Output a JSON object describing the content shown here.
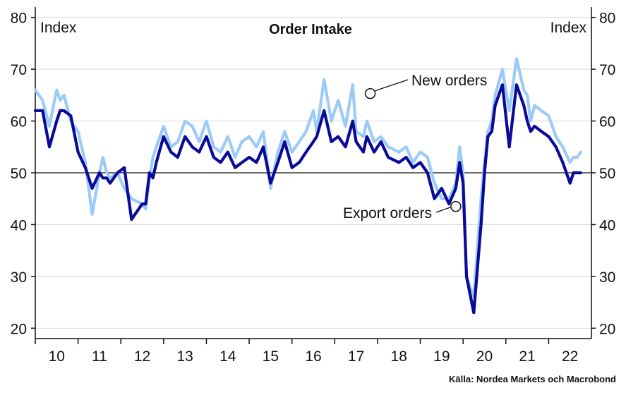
{
  "chart_data": {
    "type": "line",
    "title": "Order Intake",
    "y_unit_left": "Index",
    "y_unit_right": "Index",
    "ylim": [
      18,
      82
    ],
    "yticks": [
      20,
      30,
      40,
      50,
      60,
      70,
      80
    ],
    "xlim": [
      2009.5,
      2022.5
    ],
    "xtick_labels": [
      {
        "label": "10",
        "year": 2010
      },
      {
        "label": "11",
        "year": 2011
      },
      {
        "label": "12",
        "year": 2012
      },
      {
        "label": "13",
        "year": 2013
      },
      {
        "label": "14",
        "year": 2014
      },
      {
        "label": "15",
        "year": 2015
      },
      {
        "label": "16",
        "year": 2016
      },
      {
        "label": "17",
        "year": 2017
      },
      {
        "label": "18",
        "year": 2018
      },
      {
        "label": "19",
        "year": 2019
      },
      {
        "label": "20",
        "year": 2020
      },
      {
        "label": "21",
        "year": 2021
      },
      {
        "label": "22",
        "year": 2022
      }
    ],
    "reference_line": 50,
    "grid": true,
    "series": [
      {
        "name": "Export orders",
        "color": "#0a0a99",
        "x": [
          2009.5,
          2009.67,
          2009.83,
          2010.0,
          2010.08,
          2010.17,
          2010.33,
          2010.5,
          2010.67,
          2010.83,
          2011.0,
          2011.08,
          2011.17,
          2011.25,
          2011.42,
          2011.58,
          2011.75,
          2012.0,
          2012.08,
          2012.17,
          2012.25,
          2012.33,
          2012.5,
          2012.67,
          2012.83,
          2013.0,
          2013.17,
          2013.33,
          2013.5,
          2013.67,
          2013.83,
          2014.0,
          2014.17,
          2014.33,
          2014.5,
          2014.67,
          2014.83,
          2015.0,
          2015.17,
          2015.33,
          2015.5,
          2015.67,
          2015.83,
          2016.0,
          2016.08,
          2016.25,
          2016.42,
          2016.58,
          2016.75,
          2016.92,
          2017.0,
          2017.17,
          2017.25,
          2017.42,
          2017.58,
          2017.75,
          2018.0,
          2018.17,
          2018.33,
          2018.5,
          2018.67,
          2018.83,
          2019.0,
          2019.17,
          2019.33,
          2019.42,
          2019.5,
          2019.58,
          2019.75,
          2019.92,
          2020.0,
          2020.08,
          2020.17,
          2020.25,
          2020.42,
          2020.58,
          2020.75,
          2020.92,
          2021.0,
          2021.08,
          2021.17,
          2021.33,
          2021.5,
          2021.67,
          2021.83,
          2022.0,
          2022.08,
          2022.17,
          2022.25
        ],
        "y": [
          62,
          62,
          55,
          60,
          62,
          62,
          61,
          54,
          51,
          47,
          50,
          49,
          49,
          48,
          50,
          51,
          41,
          44,
          44,
          50,
          49,
          52,
          57,
          54,
          53,
          57,
          55,
          54,
          57,
          53,
          52,
          54,
          51,
          52,
          53,
          52,
          55,
          48,
          52,
          56,
          51,
          52,
          54,
          56,
          57,
          62,
          56,
          57,
          55,
          60,
          56,
          54,
          57,
          54,
          56,
          53,
          52,
          53,
          51,
          52,
          50,
          45,
          47,
          44,
          47,
          52,
          48,
          30,
          23,
          40,
          50,
          57,
          58,
          63,
          67,
          55,
          67,
          63,
          60,
          58,
          59,
          58,
          57,
          55,
          52,
          48,
          50,
          50,
          50
        ]
      },
      {
        "name": "New orders",
        "color": "#9ccbf7",
        "x": [
          2009.5,
          2009.67,
          2009.83,
          2010.0,
          2010.08,
          2010.17,
          2010.33,
          2010.5,
          2010.67,
          2010.83,
          2011.0,
          2011.08,
          2011.17,
          2011.25,
          2011.42,
          2011.58,
          2011.75,
          2012.0,
          2012.08,
          2012.17,
          2012.25,
          2012.33,
          2012.5,
          2012.67,
          2012.83,
          2013.0,
          2013.17,
          2013.33,
          2013.5,
          2013.67,
          2013.83,
          2014.0,
          2014.17,
          2014.33,
          2014.5,
          2014.67,
          2014.83,
          2015.0,
          2015.17,
          2015.33,
          2015.5,
          2015.67,
          2015.83,
          2016.0,
          2016.08,
          2016.25,
          2016.42,
          2016.58,
          2016.75,
          2016.92,
          2017.0,
          2017.17,
          2017.25,
          2017.42,
          2017.58,
          2017.75,
          2018.0,
          2018.17,
          2018.33,
          2018.5,
          2018.67,
          2018.83,
          2019.0,
          2019.17,
          2019.33,
          2019.42,
          2019.5,
          2019.58,
          2019.75,
          2019.92,
          2020.0,
          2020.08,
          2020.17,
          2020.25,
          2020.42,
          2020.58,
          2020.75,
          2020.92,
          2021.0,
          2021.08,
          2021.17,
          2021.33,
          2021.5,
          2021.67,
          2021.83,
          2022.0,
          2022.08,
          2022.17,
          2022.25
        ],
        "y": [
          66,
          64,
          59,
          66,
          64,
          65,
          60,
          58,
          52,
          42,
          50,
          53,
          50,
          49,
          50,
          47,
          45,
          44,
          43,
          49,
          53,
          55,
          59,
          55,
          56,
          60,
          59,
          56,
          60,
          55,
          54,
          57,
          53,
          56,
          57,
          55,
          58,
          47,
          54,
          58,
          54,
          56,
          58,
          62,
          58,
          68,
          60,
          64,
          59,
          67,
          58,
          57,
          60,
          56,
          57,
          55,
          54,
          55,
          52,
          54,
          53,
          48,
          45,
          45,
          48,
          55,
          50,
          30,
          26,
          45,
          52,
          58,
          60,
          65,
          70,
          62,
          72,
          66,
          65,
          60,
          63,
          62,
          61,
          57,
          55,
          52,
          53,
          53,
          54
        ]
      }
    ],
    "annotations": [
      {
        "text": "New orders",
        "series": "New orders"
      },
      {
        "text": "Export orders",
        "series": "Export orders"
      }
    ],
    "source": "Källa: Nordea Markets och Macrobond"
  }
}
